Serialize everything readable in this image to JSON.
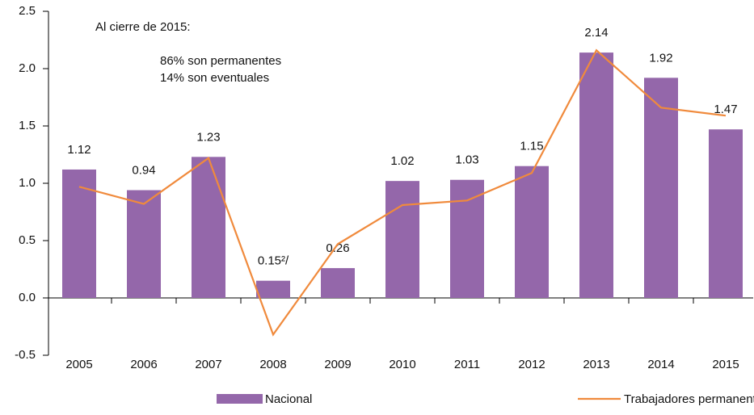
{
  "chart_data": {
    "type": "bar",
    "categories": [
      "2005",
      "2006",
      "2007",
      "2008",
      "2009",
      "2010",
      "2011",
      "2012",
      "2013",
      "2014",
      "2015"
    ],
    "series": [
      {
        "name": "Nacional",
        "type": "bar",
        "color": "#9467aa",
        "values": [
          1.12,
          0.94,
          1.23,
          0.15,
          0.26,
          1.02,
          1.03,
          1.15,
          2.14,
          1.92,
          1.47
        ],
        "value_labels": [
          "1.12",
          "0.94",
          "1.23",
          "0.15²/",
          "0.26",
          "1.02",
          "1.03",
          "1.15",
          "2.14",
          "1.92",
          "1.47"
        ]
      },
      {
        "name": "Trabajadores permanentes",
        "type": "line",
        "color": "#f08a3c",
        "values": [
          0.97,
          0.82,
          1.22,
          -0.32,
          0.47,
          0.81,
          0.85,
          1.09,
          2.16,
          1.66,
          1.59
        ]
      }
    ],
    "ylim": [
      -0.5,
      2.5
    ],
    "yticks": [
      -0.5,
      {
        "value": 0,
        "label": "0.0"
      },
      0.5,
      {
        "value": 1,
        "label": "1.0"
      },
      1.5,
      {
        "value": 2,
        "label": "2.0"
      },
      2.5
    ],
    "annotations": [
      "Al cierre de 2015:",
      "86%  son permanentes",
      "14%  son eventuales"
    ],
    "legend": "bottom"
  }
}
